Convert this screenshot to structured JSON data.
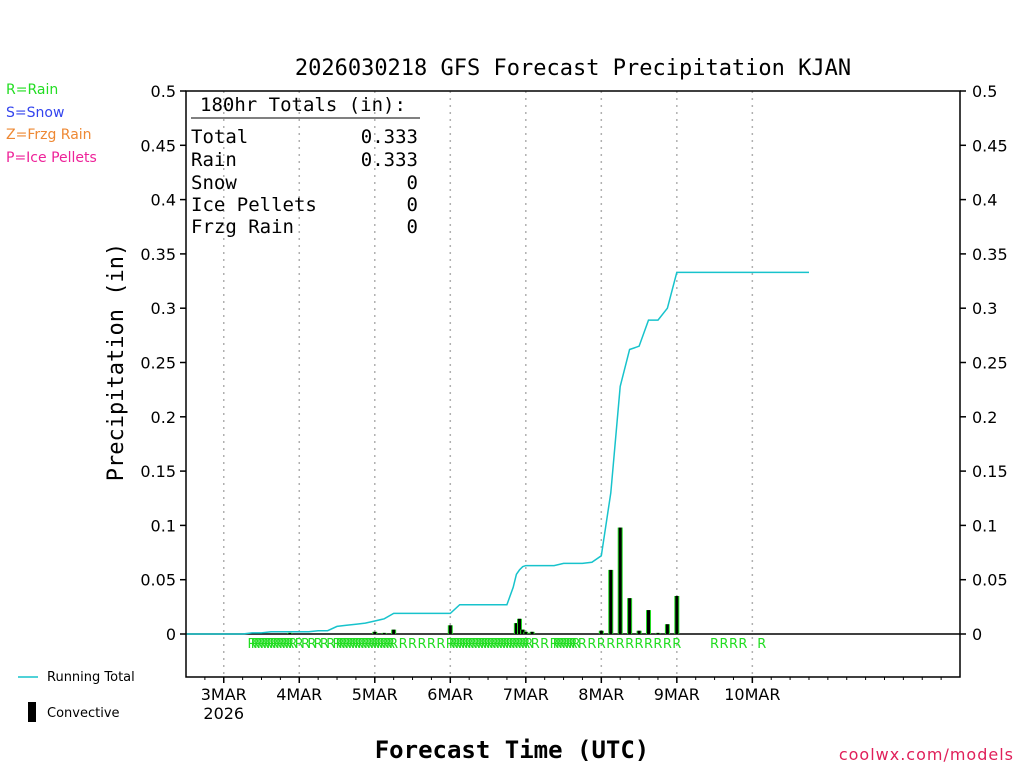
{
  "chart_data": {
    "type": "line",
    "title": "2026030218 GFS Forecast Precipitation KJAN",
    "xlabel": "Forecast Time (UTC)",
    "ylabel": "Precipitation (in)",
    "ylim": [
      -0.04,
      0.5
    ],
    "yticks": [
      0,
      0.05,
      0.1,
      0.15,
      0.2,
      0.25,
      0.3,
      0.35,
      0.4,
      0.45,
      0.5
    ],
    "ytick_labels": [
      "0",
      "0.05",
      "0.1",
      "0.15",
      "0.2",
      "0.25",
      "0.3",
      "0.35",
      "0.4",
      "0.45",
      "0.5"
    ],
    "xlim_hours": [
      -18,
      228
    ],
    "xticks": [
      {
        "hour": -6,
        "label": "3MAR",
        "sub": "2026"
      },
      {
        "hour": 18,
        "label": "4MAR"
      },
      {
        "hour": 42,
        "label": "5MAR"
      },
      {
        "hour": 66,
        "label": "6MAR"
      },
      {
        "hour": 90,
        "label": "7MAR"
      },
      {
        "hour": 114,
        "label": "8MAR"
      },
      {
        "hour": 138,
        "label": "9MAR"
      },
      {
        "hour": 162,
        "label": "10MAR"
      }
    ],
    "grid": true,
    "series": [
      {
        "name": "Running Total",
        "color": "#17c3cc",
        "x": [
          -18,
          0,
          3,
          6,
          9,
          12,
          15,
          18,
          21,
          24,
          27,
          30,
          33,
          36,
          39,
          42,
          45,
          48,
          51,
          54,
          57,
          60,
          63,
          66,
          69,
          72,
          75,
          78,
          81,
          84,
          86,
          87,
          88,
          89,
          90,
          93,
          96,
          99,
          102,
          105,
          108,
          111,
          114,
          117,
          120,
          123,
          126,
          129,
          132,
          135,
          138,
          180
        ],
        "y": [
          0,
          0,
          0.001,
          0.001,
          0.002,
          0.002,
          0.002,
          0.002,
          0.002,
          0.003,
          0.003,
          0.007,
          0.008,
          0.009,
          0.01,
          0.012,
          0.014,
          0.019,
          0.019,
          0.019,
          0.019,
          0.019,
          0.019,
          0.019,
          0.027,
          0.027,
          0.027,
          0.027,
          0.027,
          0.027,
          0.043,
          0.055,
          0.059,
          0.062,
          0.063,
          0.063,
          0.063,
          0.063,
          0.065,
          0.065,
          0.065,
          0.066,
          0.072,
          0.13,
          0.228,
          0.262,
          0.265,
          0.289,
          0.289,
          0.3,
          0.333,
          0.333
        ]
      },
      {
        "name": "Convective",
        "type": "bar",
        "color": "#000000",
        "x": [
          15,
          42,
          45,
          48,
          66,
          87,
          88,
          89,
          90,
          92,
          114,
          117,
          120,
          123,
          126,
          129,
          132,
          135,
          138
        ],
        "y": [
          0.001,
          0.002,
          0.001,
          0.004,
          0.008,
          0.01,
          0.014,
          0.004,
          0.002,
          0.002,
          0.003,
          0.059,
          0.098,
          0.033,
          0.003,
          0.022,
          0.001,
          0.009,
          0.035
        ]
      }
    ],
    "type_markers": {
      "symbol": "R",
      "color": "#22dd22",
      "hours": [
        3,
        4,
        5,
        6,
        7,
        8,
        9,
        10,
        11,
        12,
        13,
        14,
        15,
        16,
        18,
        20,
        22,
        24,
        26,
        28,
        30,
        31,
        32,
        33,
        34,
        35,
        36,
        37,
        38,
        39,
        40,
        41,
        42,
        43,
        44,
        45,
        46,
        47,
        48,
        51,
        54,
        57,
        60,
        63,
        66,
        67,
        68,
        69,
        70,
        71,
        72,
        73,
        74,
        75,
        76,
        77,
        78,
        79,
        80,
        81,
        82,
        83,
        84,
        85,
        86,
        87,
        88,
        89,
        90,
        91,
        93,
        96,
        99,
        100,
        101,
        102,
        103,
        104,
        105,
        106,
        108,
        111,
        114,
        117,
        120,
        123,
        126,
        129,
        132,
        135,
        138,
        150,
        153,
        156,
        159,
        165
      ]
    },
    "totals_box": {
      "heading": "180hr Totals (in):",
      "rows": [
        {
          "label": "Total",
          "value": "0.333"
        },
        {
          "label": "Rain",
          "value": "0.333"
        },
        {
          "label": "Snow",
          "value": "0"
        },
        {
          "label": "Ice Pellets",
          "value": "0"
        },
        {
          "label": "Frzg Rain",
          "value": "0"
        }
      ]
    }
  },
  "legend": {
    "rain": {
      "text": "R=Rain",
      "color": "#22dd22"
    },
    "snow": {
      "text": "S=Snow",
      "color": "#3344ee"
    },
    "frzg": {
      "text": "Z=Frzg Rain",
      "color": "#ee8833"
    },
    "ice": {
      "text": "P=Ice Pellets",
      "color": "#ee2299"
    },
    "running_total": "Running Total",
    "convective": "Convective"
  },
  "credit": "coolwx.com/models"
}
